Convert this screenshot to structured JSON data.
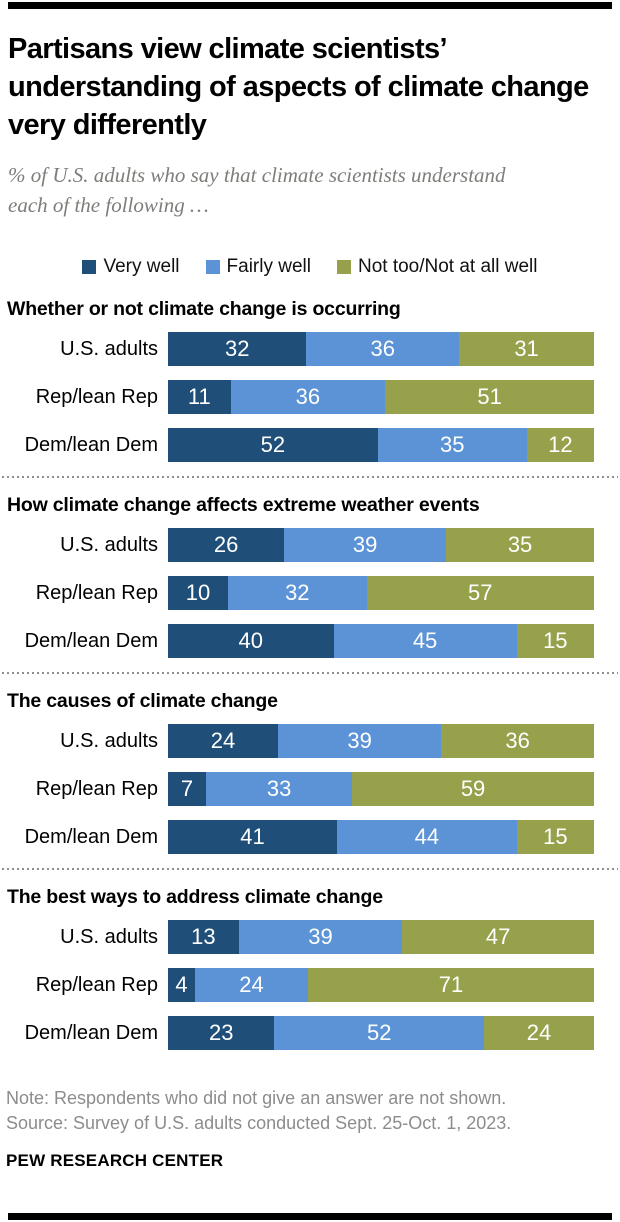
{
  "header": {
    "title": "Partisans view climate scientists’ understanding of aspects of climate change very differently",
    "subtitle": "% of U.S. adults who say that climate scientists understand each of the following …"
  },
  "legend": [
    {
      "label": "Very well",
      "color": "#1f4e79"
    },
    {
      "label": "Fairly well",
      "color": "#5b93d6"
    },
    {
      "label": "Not too/Not at all well",
      "color": "#97a14b"
    }
  ],
  "chart_data": {
    "type": "bar",
    "stacked": true,
    "orientation": "horizontal",
    "unit": "percent",
    "xlim": [
      0,
      100
    ],
    "series_labels": [
      "Very well",
      "Fairly well",
      "Not too/Not at all well"
    ],
    "series_colors": [
      "#1f4e79",
      "#5b93d6",
      "#97a14b"
    ],
    "categories": [
      "U.S. adults",
      "Rep/lean Rep",
      "Dem/lean Dem"
    ],
    "sections": [
      {
        "title": "Whether or not climate change is occurring",
        "rows": [
          {
            "label": "U.S. adults",
            "values": [
              32,
              36,
              31
            ]
          },
          {
            "label": "Rep/lean Rep",
            "values": [
              11,
              36,
              51
            ]
          },
          {
            "label": "Dem/lean Dem",
            "values": [
              52,
              35,
              12
            ]
          }
        ]
      },
      {
        "title": "How climate change affects extreme weather events",
        "rows": [
          {
            "label": "U.S. adults",
            "values": [
              26,
              39,
              35
            ]
          },
          {
            "label": "Rep/lean Rep",
            "values": [
              10,
              32,
              57
            ]
          },
          {
            "label": "Dem/lean Dem",
            "values": [
              40,
              45,
              15
            ]
          }
        ]
      },
      {
        "title": "The causes of climate change",
        "rows": [
          {
            "label": "U.S. adults",
            "values": [
              24,
              39,
              36
            ]
          },
          {
            "label": "Rep/lean Rep",
            "values": [
              7,
              33,
              59
            ]
          },
          {
            "label": "Dem/lean Dem",
            "values": [
              41,
              44,
              15
            ]
          }
        ]
      },
      {
        "title": "The best ways to address climate change",
        "rows": [
          {
            "label": "U.S. adults",
            "values": [
              13,
              39,
              47
            ]
          },
          {
            "label": "Rep/lean Rep",
            "values": [
              4,
              24,
              71
            ]
          },
          {
            "label": "Dem/lean Dem",
            "values": [
              23,
              52,
              24
            ]
          }
        ]
      }
    ]
  },
  "footer": {
    "note": "Note: Respondents who did not give an answer are not shown.",
    "source": "Source: Survey of U.S. adults conducted Sept. 25-Oct. 1, 2023.",
    "brand": "PEW RESEARCH CENTER"
  }
}
